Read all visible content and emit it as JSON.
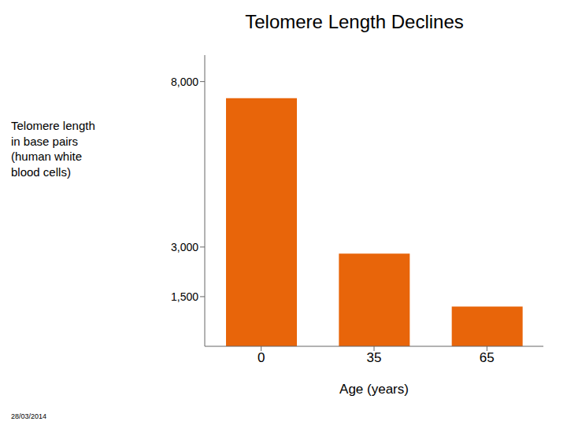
{
  "chart_data": {
    "type": "bar",
    "title": "Telomere Length Declines",
    "categories": [
      "0",
      "35",
      "65"
    ],
    "values": [
      7500,
      2800,
      1200
    ],
    "color": "#E8650A",
    "xlabel": "Age (years)",
    "ylabel": "Telomere length\nin base pairs\n(human white\nblood cells)",
    "annotations": [
      "28/03/2014"
    ],
    "ylim": [
      0,
      8800
    ],
    "yticks": [
      {
        "value": 1500,
        "label": "1,500"
      },
      {
        "value": 3000,
        "label": "3,000"
      },
      {
        "value": 8000,
        "label": "8,000"
      }
    ],
    "grid": false
  }
}
